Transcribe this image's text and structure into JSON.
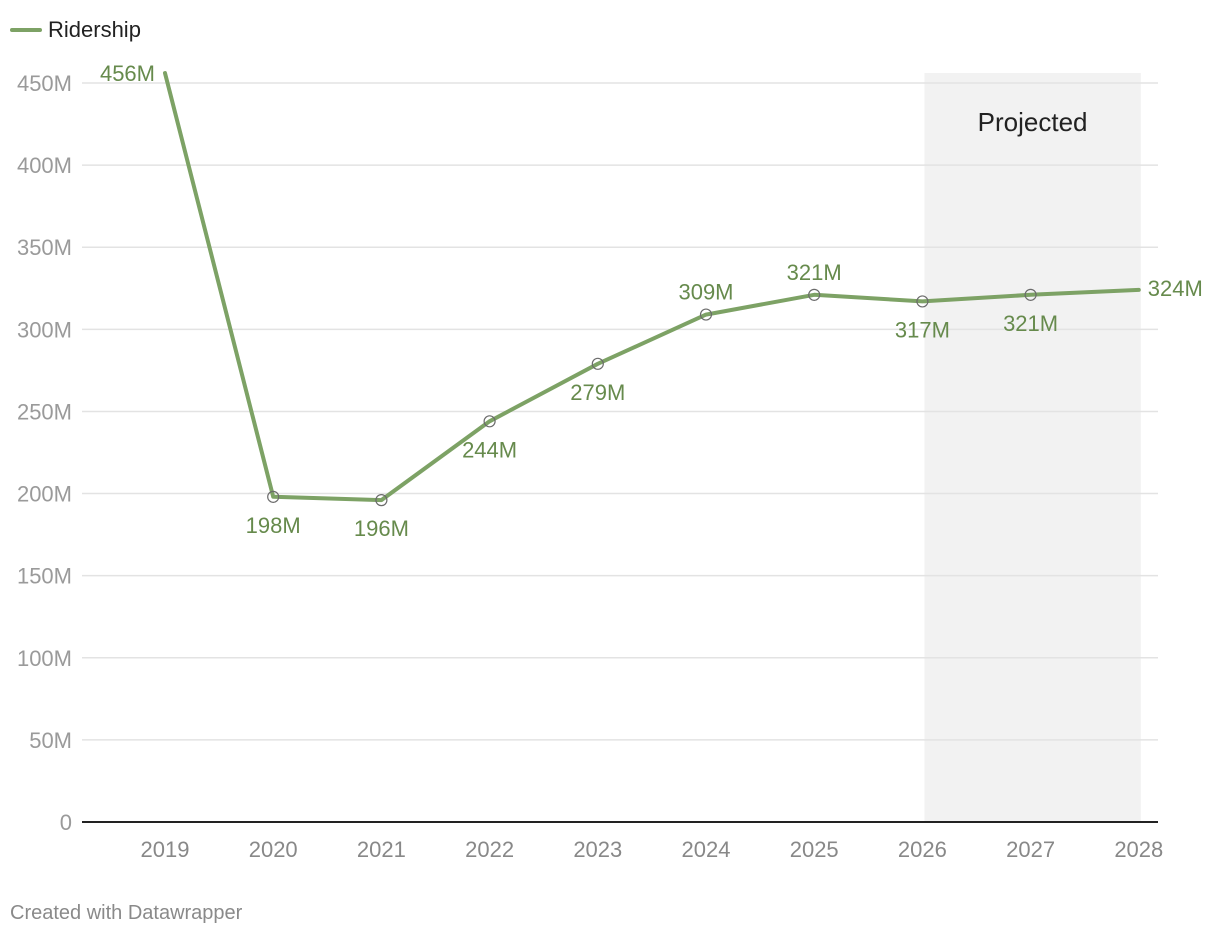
{
  "chart_data": {
    "type": "line",
    "title": "",
    "xlabel": "",
    "ylabel": "",
    "categories": [
      "2019",
      "2020",
      "2021",
      "2022",
      "2023",
      "2024",
      "2025",
      "2026",
      "2027",
      "2028"
    ],
    "series": [
      {
        "name": "Ridership",
        "color": "#7da265",
        "values": [
          456,
          198,
          196,
          244,
          279,
          309,
          321,
          317,
          321,
          324
        ],
        "labels": [
          "456M",
          "198M",
          "196M",
          "244M",
          "279M",
          "309M",
          "321M",
          "317M",
          "321M",
          "324M"
        ]
      }
    ],
    "ylim": [
      0,
      450
    ],
    "yticks": [
      0,
      50,
      100,
      150,
      200,
      250,
      300,
      350,
      400,
      450
    ],
    "ytick_labels": [
      "0",
      "50M",
      "100M",
      "150M",
      "200M",
      "250M",
      "300M",
      "350M",
      "400M",
      "450M"
    ],
    "grid": true,
    "legend": "top-left",
    "annotation": {
      "label": "Projected",
      "from": "2026",
      "to": "2028"
    },
    "label_color": "#668a4c"
  },
  "footer": {
    "credit": "Created with Datawrapper"
  }
}
